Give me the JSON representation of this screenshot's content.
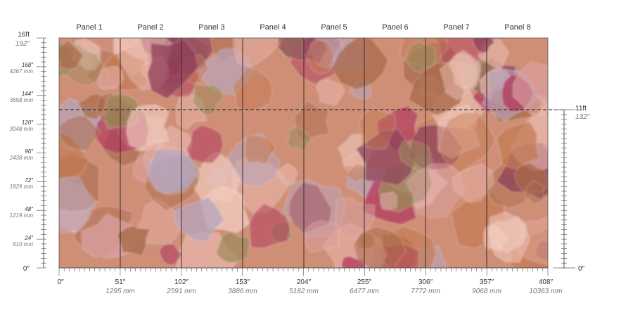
{
  "panels": [
    "Panel 1",
    "Panel 2",
    "Panel 3",
    "Panel 4",
    "Panel 5",
    "Panel 6",
    "Panel 7",
    "Panel 8"
  ],
  "left_ruler": {
    "top_main": "16ft",
    "top_sub": "192″",
    "bottom": "0″",
    "ticks": [
      {
        "main": "168″",
        "sub": "4267 mm"
      },
      {
        "main": "144″",
        "sub": "3658 mm"
      },
      {
        "main": "120″",
        "sub": "3048 mm"
      },
      {
        "main": "96″",
        "sub": "2438 mm"
      },
      {
        "main": "72″",
        "sub": "1829 mm"
      },
      {
        "main": "48″",
        "sub": "1219 mm"
      },
      {
        "main": "24″",
        "sub": "610 mm"
      }
    ]
  },
  "right_ruler": {
    "top_main": "11ft",
    "top_sub": "132″",
    "bottom": "0″"
  },
  "bottom_ruler": [
    {
      "main": "0″",
      "sub": ""
    },
    {
      "main": "51″",
      "sub": "1295 mm"
    },
    {
      "main": "102″",
      "sub": "2591 mm"
    },
    {
      "main": "153″",
      "sub": "3886 mm"
    },
    {
      "main": "204″",
      "sub": "5182 mm"
    },
    {
      "main": "255″",
      "sub": "6477 mm"
    },
    {
      "main": "306″",
      "sub": "7772 mm"
    },
    {
      "main": "357″",
      "sub": "9068 mm"
    },
    {
      "main": "408″",
      "sub": "10363 mm"
    }
  ],
  "colors": {
    "base": "#cf8e76",
    "blobs": [
      "#b23a5e",
      "#9c8a5a",
      "#e8b4a8",
      "#b7a6bd",
      "#c47a52",
      "#f2cbbf",
      "#8f3f5a",
      "#d9a0a0",
      "#a96a4a"
    ]
  }
}
